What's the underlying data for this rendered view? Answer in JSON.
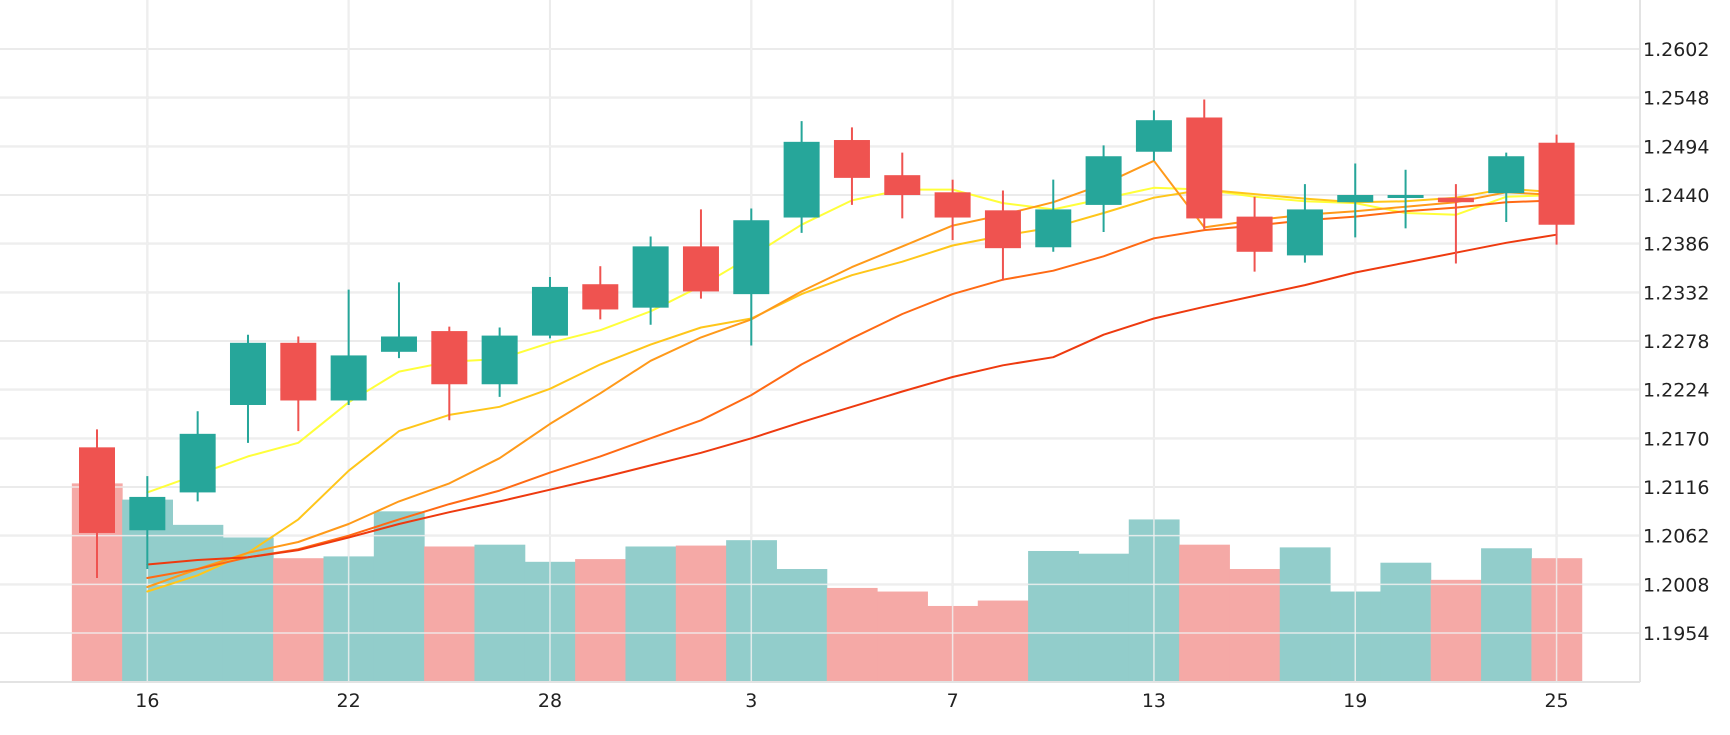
{
  "chart_data": {
    "type": "candlestick",
    "grid": true,
    "y_axis": {
      "position": "right",
      "ylim": [
        1.19,
        1.264
      ],
      "ticks": [
        "1.2602",
        "1.2548",
        "1.2494",
        "1.2440",
        "1.2386",
        "1.2332",
        "1.2278",
        "1.2224",
        "1.2170",
        "1.2116",
        "1.2062",
        "1.2008",
        "1.1954"
      ]
    },
    "x_axis": {
      "ticks": [
        {
          "index": 1,
          "label": "16"
        },
        {
          "index": 5,
          "label": "22"
        },
        {
          "index": 9,
          "label": "28"
        },
        {
          "index": 13,
          "label": "3"
        },
        {
          "index": 17,
          "label": "7"
        },
        {
          "index": 21,
          "label": "13"
        },
        {
          "index": 25,
          "label": "19"
        },
        {
          "index": 29,
          "label": "25"
        }
      ]
    },
    "colors": {
      "up": "#26a69a",
      "down": "#ef5350",
      "volume_up": "#92cdcb",
      "volume_down": "#f5a9a6",
      "grid": "#e3e3e3",
      "ma": [
        "#ffff3a",
        "#ffc61a",
        "#ff9a1a",
        "#ff6a14",
        "#ee3a0f"
      ]
    },
    "candles": [
      {
        "open": 1.216,
        "high": 1.218,
        "low": 1.2015,
        "close": 1.2065
      },
      {
        "open": 1.2068,
        "high": 1.2128,
        "low": 1.2025,
        "close": 1.2105
      },
      {
        "open": 1.211,
        "high": 1.22,
        "low": 1.21,
        "close": 1.2175
      },
      {
        "open": 1.2207,
        "high": 1.2285,
        "low": 1.2165,
        "close": 1.2276
      },
      {
        "open": 1.2276,
        "high": 1.2283,
        "low": 1.2178,
        "close": 1.2212
      },
      {
        "open": 1.2212,
        "high": 1.2335,
        "low": 1.2207,
        "close": 1.2262
      },
      {
        "open": 1.2266,
        "high": 1.2343,
        "low": 1.2259,
        "close": 1.2283
      },
      {
        "open": 1.2289,
        "high": 1.2294,
        "low": 1.219,
        "close": 1.223
      },
      {
        "open": 1.223,
        "high": 1.2293,
        "low": 1.2216,
        "close": 1.2284
      },
      {
        "open": 1.2284,
        "high": 1.2349,
        "low": 1.2281,
        "close": 1.2338
      },
      {
        "open": 1.2341,
        "high": 1.2361,
        "low": 1.2302,
        "close": 1.2313
      },
      {
        "open": 1.2315,
        "high": 1.2394,
        "low": 1.2296,
        "close": 1.2383
      },
      {
        "open": 1.2383,
        "high": 1.2424,
        "low": 1.2325,
        "close": 1.2333
      },
      {
        "open": 1.233,
        "high": 1.2425,
        "low": 1.2273,
        "close": 1.2412
      },
      {
        "open": 1.2415,
        "high": 1.2522,
        "low": 1.2398,
        "close": 1.2499
      },
      {
        "open": 1.2501,
        "high": 1.2515,
        "low": 1.2429,
        "close": 1.2459
      },
      {
        "open": 1.2462,
        "high": 1.2487,
        "low": 1.2414,
        "close": 1.244
      },
      {
        "open": 1.2443,
        "high": 1.2457,
        "low": 1.239,
        "close": 1.2415
      },
      {
        "open": 1.2423,
        "high": 1.2445,
        "low": 1.2345,
        "close": 1.2381
      },
      {
        "open": 1.2382,
        "high": 1.2457,
        "low": 1.2377,
        "close": 1.2424
      },
      {
        "open": 1.2429,
        "high": 1.2495,
        "low": 1.2399,
        "close": 1.2483
      },
      {
        "open": 1.2488,
        "high": 1.2534,
        "low": 1.2478,
        "close": 1.2523
      },
      {
        "open": 1.2526,
        "high": 1.2546,
        "low": 1.2402,
        "close": 1.2414
      },
      {
        "open": 1.2416,
        "high": 1.2438,
        "low": 1.2355,
        "close": 1.2377
      },
      {
        "open": 1.2373,
        "high": 1.2452,
        "low": 1.2365,
        "close": 1.2424
      },
      {
        "open": 1.2432,
        "high": 1.2475,
        "low": 1.2393,
        "close": 1.244
      },
      {
        "open": 1.2438,
        "high": 1.2468,
        "low": 1.2403,
        "close": 1.244
      },
      {
        "open": 1.2437,
        "high": 1.2452,
        "low": 1.2364,
        "close": 1.2432
      },
      {
        "open": 1.2442,
        "high": 1.2487,
        "low": 1.241,
        "close": 1.2483
      },
      {
        "open": 1.2498,
        "high": 1.2507,
        "low": 1.2385,
        "close": 1.2407
      }
    ],
    "volume": [
      1.212,
      1.2102,
      1.2074,
      1.206,
      1.2037,
      1.2039,
      1.2089,
      1.205,
      1.2052,
      1.2033,
      1.2036,
      1.205,
      1.2051,
      1.2057,
      1.2025,
      1.2004,
      1.2,
      1.1984,
      1.199,
      1.2045,
      1.2042,
      1.208,
      1.2052,
      1.2025,
      1.2049,
      1.2,
      1.2032,
      1.2013,
      1.2048,
      1.2037
    ],
    "moving_averages": [
      {
        "values": [
          null,
          1.211,
          1.213,
          1.215,
          1.2165,
          1.221,
          1.2244,
          1.2255,
          1.2258,
          1.2276,
          1.229,
          1.2311,
          1.2339,
          1.2372,
          1.2407,
          1.2434,
          1.2446,
          1.2446,
          1.2431,
          1.2424,
          1.2436,
          1.2448,
          1.2446,
          1.2438,
          1.2433,
          1.2431,
          1.242,
          1.2418,
          1.2438,
          1.244
        ]
      },
      {
        "values": [
          null,
          1.2,
          1.2018,
          1.2043,
          1.208,
          1.2134,
          1.2178,
          1.2196,
          1.2205,
          1.2225,
          1.2252,
          1.2274,
          1.2293,
          1.2303,
          1.233,
          1.2351,
          1.2366,
          1.2384,
          1.2395,
          1.2404,
          1.242,
          1.2437,
          1.2446,
          1.2441,
          1.2436,
          1.2432,
          1.2433,
          1.2437,
          1.2447,
          1.2443
        ]
      },
      {
        "values": [
          null,
          1.2005,
          1.2025,
          1.2043,
          1.2055,
          1.2075,
          1.21,
          1.212,
          1.2148,
          1.2186,
          1.222,
          1.2256,
          1.2282,
          1.2302,
          1.2333,
          1.236,
          1.2383,
          1.2406,
          1.2418,
          1.2432,
          1.2452,
          1.2478,
          1.2404,
          1.2412,
          1.2418,
          1.2422,
          1.2427,
          1.2432,
          1.2443,
          1.244
        ]
      },
      {
        "values": [
          null,
          1.2015,
          1.2025,
          1.2038,
          1.2047,
          1.2062,
          1.208,
          1.2097,
          1.2112,
          1.2132,
          1.215,
          1.217,
          1.219,
          1.2218,
          1.2252,
          1.2281,
          1.2308,
          1.233,
          1.2346,
          1.2356,
          1.2372,
          1.2392,
          1.2401,
          1.2406,
          1.2412,
          1.2416,
          1.2422,
          1.2426,
          1.2432,
          1.2434
        ]
      },
      {
        "values": [
          null,
          1.203,
          1.2035,
          1.2038,
          1.2046,
          1.206,
          1.2075,
          1.2088,
          1.21,
          1.2113,
          1.2126,
          1.214,
          1.2154,
          1.217,
          1.2188,
          1.2205,
          1.2222,
          1.2238,
          1.2251,
          1.226,
          1.2285,
          1.2303,
          1.2316,
          1.2328,
          1.234,
          1.2354,
          1.2365,
          1.2376,
          1.2387,
          1.2396
        ]
      }
    ]
  }
}
